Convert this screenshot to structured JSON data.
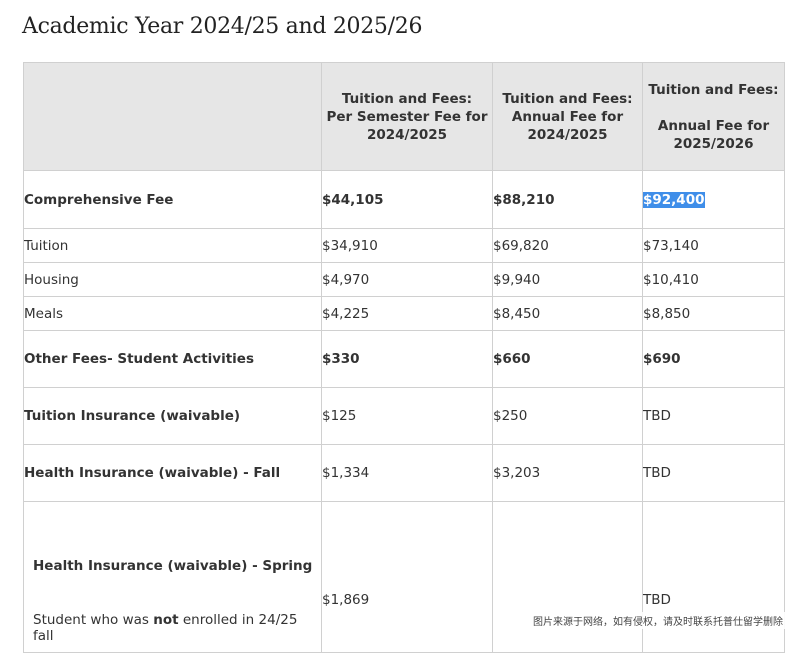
{
  "title": "Academic Year 2024/25 and 2025/26",
  "headers": {
    "col1": "Tuition and Fees:\nPer Semester Fee for\n2024/2025",
    "col2": "Tuition and Fees:\nAnnual Fee for\n2024/2025",
    "col3": "Tuition and Fees:\n\nAnnual Fee for\n2025/2026"
  },
  "rows": {
    "comprehensive": {
      "label": "Comprehensive Fee",
      "v1": "$44,105",
      "v2": "$88,210",
      "v3": "$92,400"
    },
    "tuition": {
      "label": "Tuition",
      "v1": "$34,910",
      "v2": "$69,820",
      "v3": "$73,140"
    },
    "housing": {
      "label": "Housing",
      "v1": "$4,970",
      "v2": "$9,940",
      "v3": "$10,410"
    },
    "meals": {
      "label": "Meals",
      "v1": "$4,225",
      "v2": "$8,450",
      "v3": "$8,850"
    },
    "other": {
      "label": "Other Fees- Student Activities",
      "v1": "$330",
      "v2": "$660",
      "v3": "$690"
    },
    "tuition_ins": {
      "label": "Tuition Insurance (waivable)",
      "v1": "$125",
      "v2": "$250",
      "v3": "TBD"
    },
    "health_fall": {
      "label": "Health Insurance (waivable) - Fall",
      "v1": "$1,334",
      "v2": "$3,203",
      "v3": "TBD"
    },
    "health_spring": {
      "label": "Health Insurance (waivable) - Spring",
      "note_prefix": "Student who was ",
      "note_bold": "not",
      "note_suffix": " enrolled in 24/25 fall",
      "v1": "$1,869",
      "v3": "TBD"
    }
  },
  "watermark": "图片来源于网络，如有侵权，请及时联系托普仕留学删除"
}
